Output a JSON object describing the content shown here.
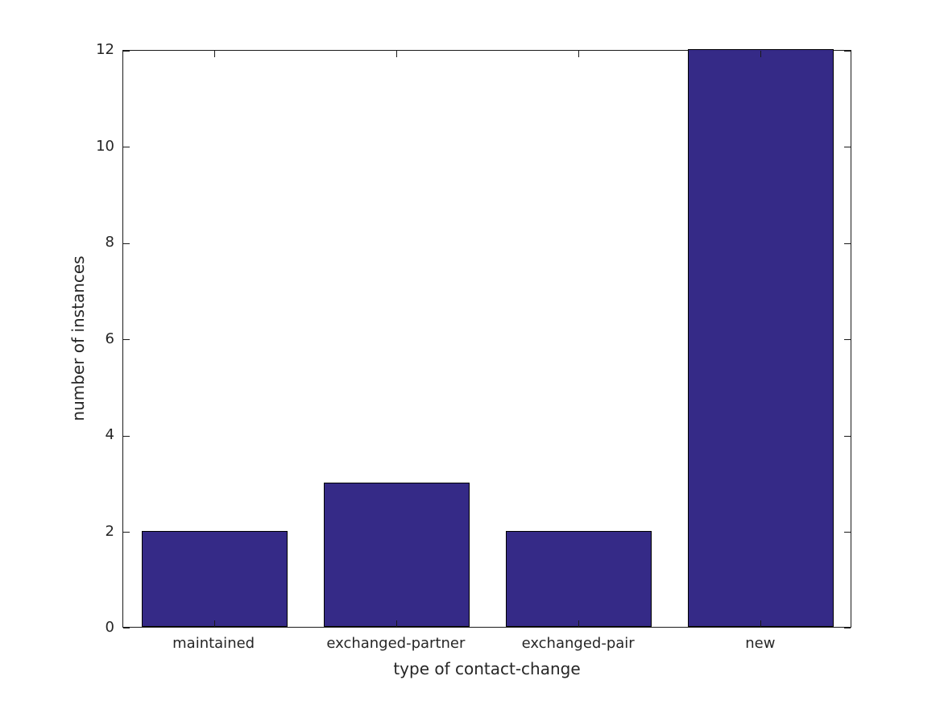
{
  "figure": {
    "background_color": "#ffffff"
  },
  "chart_data": {
    "type": "bar",
    "categories": [
      "maintained",
      "exchanged-partner",
      "exchanged-pair",
      "new"
    ],
    "values": [
      2,
      3,
      2,
      12
    ],
    "title": "",
    "xlabel": "type of contact-change",
    "ylabel": "number of instances",
    "ylim": [
      0,
      12
    ],
    "yticks": [
      0,
      2,
      4,
      6,
      8,
      10,
      12
    ],
    "ytick_labels": [
      "0",
      "2",
      "4",
      "6",
      "8",
      "10",
      "12"
    ],
    "bar_color": "#352a87",
    "bar_edge_color": "#000000",
    "bar_width_fraction": 0.8,
    "axis_color": "#262626",
    "grid": false,
    "legend_position": "none",
    "box": true
  }
}
